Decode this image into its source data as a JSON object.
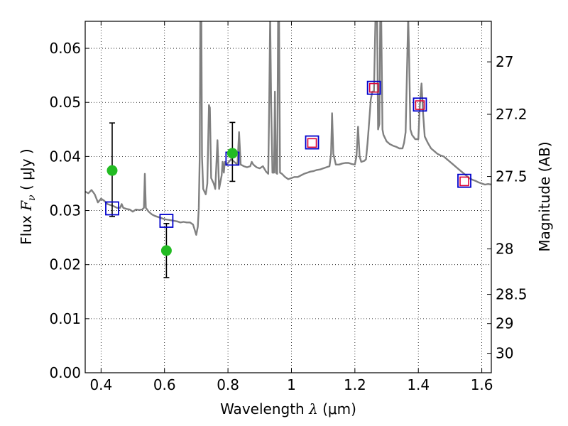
{
  "chart_data": {
    "type": "scatter",
    "xlabel": {
      "prefix": "Wavelength  ",
      "symbol": "λ",
      "unit": " (μm)"
    },
    "ylabel": {
      "prefix": "Flux  ",
      "symbol": "F",
      "subscript": "ν",
      "unit": " ( μJy )"
    },
    "y2label": "Magnitude (AB)",
    "xlim": [
      0.35,
      1.63
    ],
    "ylim": [
      0.0,
      0.065
    ],
    "grid": true,
    "x_ticks": [
      0.4,
      0.6,
      0.8,
      1.0,
      1.2,
      1.4,
      1.6
    ],
    "x_tick_labels": [
      "0.4",
      "0.6",
      "0.8",
      "1",
      "1.2",
      "1.4",
      "1.6"
    ],
    "y_ticks": [
      0.0,
      0.01,
      0.02,
      0.03,
      0.04,
      0.05,
      0.06
    ],
    "y_tick_labels": [
      "0.00",
      "0.01",
      "0.02",
      "0.03",
      "0.04",
      "0.05",
      "0.06"
    ],
    "mag_ticks": [
      {
        "label": "27",
        "flux": 0.0575
      },
      {
        "label": "27.2",
        "flux": 0.0478
      },
      {
        "label": "27.5",
        "flux": 0.0363
      },
      {
        "label": "28",
        "flux": 0.0229
      },
      {
        "label": "28.5",
        "flux": 0.0145
      },
      {
        "label": "29",
        "flux": 0.0091
      },
      {
        "label": "30",
        "flux": 0.0036
      }
    ],
    "colors": {
      "spectrum": "#808080",
      "model_marker": "#0000cc",
      "observed_hst": "#dd0033",
      "observed_ground": "#22bb22",
      "errorbar": "#000000"
    },
    "series": [
      {
        "kind": "spectrum",
        "points": [
          [
            0.35,
            0.0335
          ],
          [
            0.36,
            0.0332
          ],
          [
            0.37,
            0.0338
          ],
          [
            0.38,
            0.033
          ],
          [
            0.39,
            0.0315
          ],
          [
            0.4,
            0.0322
          ],
          [
            0.41,
            0.0318
          ],
          [
            0.42,
            0.0312
          ],
          [
            0.43,
            0.031
          ],
          [
            0.44,
            0.0308
          ],
          [
            0.45,
            0.0305
          ],
          [
            0.46,
            0.0305
          ],
          [
            0.465,
            0.0312
          ],
          [
            0.47,
            0.0305
          ],
          [
            0.48,
            0.0303
          ],
          [
            0.49,
            0.0302
          ],
          [
            0.5,
            0.0298
          ],
          [
            0.51,
            0.0302
          ],
          [
            0.52,
            0.0301
          ],
          [
            0.53,
            0.0302
          ],
          [
            0.535,
            0.0305
          ],
          [
            0.538,
            0.0368
          ],
          [
            0.541,
            0.0305
          ],
          [
            0.55,
            0.0298
          ],
          [
            0.56,
            0.0293
          ],
          [
            0.57,
            0.029
          ],
          [
            0.58,
            0.0288
          ],
          [
            0.59,
            0.0286
          ],
          [
            0.6,
            0.0284
          ],
          [
            0.61,
            0.0283
          ],
          [
            0.62,
            0.0282
          ],
          [
            0.63,
            0.0281
          ],
          [
            0.64,
            0.028
          ],
          [
            0.65,
            0.0278
          ],
          [
            0.66,
            0.0279
          ],
          [
            0.67,
            0.0278
          ],
          [
            0.68,
            0.0278
          ],
          [
            0.69,
            0.0274
          ],
          [
            0.7,
            0.0255
          ],
          [
            0.705,
            0.027
          ],
          [
            0.708,
            0.0305
          ],
          [
            0.711,
            0.04
          ],
          [
            0.713,
            0.066
          ],
          [
            0.716,
            0.066
          ],
          [
            0.718,
            0.04
          ],
          [
            0.722,
            0.034
          ],
          [
            0.73,
            0.033
          ],
          [
            0.735,
            0.035
          ],
          [
            0.74,
            0.0495
          ],
          [
            0.743,
            0.049
          ],
          [
            0.747,
            0.036
          ],
          [
            0.755,
            0.035
          ],
          [
            0.76,
            0.034
          ],
          [
            0.767,
            0.043
          ],
          [
            0.772,
            0.034
          ],
          [
            0.78,
            0.0365
          ],
          [
            0.783,
            0.039
          ],
          [
            0.787,
            0.037
          ],
          [
            0.79,
            0.039
          ],
          [
            0.795,
            0.0385
          ],
          [
            0.8,
            0.0388
          ],
          [
            0.81,
            0.0395
          ],
          [
            0.82,
            0.039
          ],
          [
            0.83,
            0.0385
          ],
          [
            0.835,
            0.0445
          ],
          [
            0.84,
            0.0385
          ],
          [
            0.85,
            0.0382
          ],
          [
            0.86,
            0.038
          ],
          [
            0.87,
            0.0382
          ],
          [
            0.875,
            0.039
          ],
          [
            0.88,
            0.0385
          ],
          [
            0.89,
            0.038
          ],
          [
            0.9,
            0.0378
          ],
          [
            0.91,
            0.0382
          ],
          [
            0.92,
            0.0372
          ],
          [
            0.927,
            0.0368
          ],
          [
            0.93,
            0.05
          ],
          [
            0.933,
            0.066
          ],
          [
            0.936,
            0.05
          ],
          [
            0.94,
            0.037
          ],
          [
            0.945,
            0.037
          ],
          [
            0.948,
            0.052
          ],
          [
            0.951,
            0.037
          ],
          [
            0.955,
            0.0368
          ],
          [
            0.958,
            0.066
          ],
          [
            0.961,
            0.066
          ],
          [
            0.964,
            0.037
          ],
          [
            0.97,
            0.0368
          ],
          [
            0.98,
            0.0362
          ],
          [
            0.99,
            0.0358
          ],
          [
            1.0,
            0.036
          ],
          [
            1.01,
            0.0362
          ],
          [
            1.02,
            0.0362
          ],
          [
            1.03,
            0.0365
          ],
          [
            1.04,
            0.0368
          ],
          [
            1.05,
            0.037
          ],
          [
            1.06,
            0.0372
          ],
          [
            1.07,
            0.0373
          ],
          [
            1.08,
            0.0375
          ],
          [
            1.09,
            0.0376
          ],
          [
            1.1,
            0.0378
          ],
          [
            1.11,
            0.038
          ],
          [
            1.12,
            0.0382
          ],
          [
            1.125,
            0.0405
          ],
          [
            1.128,
            0.048
          ],
          [
            1.132,
            0.0405
          ],
          [
            1.14,
            0.0385
          ],
          [
            1.15,
            0.0385
          ],
          [
            1.16,
            0.0387
          ],
          [
            1.17,
            0.0388
          ],
          [
            1.18,
            0.0388
          ],
          [
            1.19,
            0.0386
          ],
          [
            1.2,
            0.0385
          ],
          [
            1.205,
            0.04
          ],
          [
            1.21,
            0.0455
          ],
          [
            1.215,
            0.04
          ],
          [
            1.22,
            0.039
          ],
          [
            1.23,
            0.0392
          ],
          [
            1.235,
            0.0395
          ],
          [
            1.24,
            0.0425
          ],
          [
            1.245,
            0.0465
          ],
          [
            1.25,
            0.0505
          ],
          [
            1.255,
            0.052
          ],
          [
            1.26,
            0.052
          ],
          [
            1.265,
            0.066
          ],
          [
            1.27,
            0.066
          ],
          [
            1.273,
            0.045
          ],
          [
            1.277,
            0.046
          ],
          [
            1.28,
            0.066
          ],
          [
            1.283,
            0.066
          ],
          [
            1.287,
            0.045
          ],
          [
            1.29,
            0.044
          ],
          [
            1.3,
            0.0428
          ],
          [
            1.31,
            0.0423
          ],
          [
            1.32,
            0.042
          ],
          [
            1.33,
            0.0418
          ],
          [
            1.34,
            0.0415
          ],
          [
            1.35,
            0.0415
          ],
          [
            1.355,
            0.0425
          ],
          [
            1.36,
            0.0445
          ],
          [
            1.365,
            0.058
          ],
          [
            1.368,
            0.066
          ],
          [
            1.371,
            0.058
          ],
          [
            1.375,
            0.045
          ],
          [
            1.38,
            0.044
          ],
          [
            1.39,
            0.0432
          ],
          [
            1.4,
            0.0432
          ],
          [
            1.405,
            0.05
          ],
          [
            1.41,
            0.0535
          ],
          [
            1.415,
            0.048
          ],
          [
            1.42,
            0.0437
          ],
          [
            1.43,
            0.0425
          ],
          [
            1.44,
            0.0415
          ],
          [
            1.45,
            0.041
          ],
          [
            1.46,
            0.0405
          ],
          [
            1.47,
            0.0402
          ],
          [
            1.48,
            0.04
          ],
          [
            1.49,
            0.0395
          ],
          [
            1.5,
            0.039
          ],
          [
            1.51,
            0.0385
          ],
          [
            1.52,
            0.038
          ],
          [
            1.53,
            0.0375
          ],
          [
            1.54,
            0.037
          ],
          [
            1.55,
            0.0365
          ],
          [
            1.56,
            0.036
          ],
          [
            1.57,
            0.0357
          ],
          [
            1.58,
            0.0355
          ],
          [
            1.59,
            0.0352
          ],
          [
            1.6,
            0.035
          ],
          [
            1.61,
            0.0348
          ],
          [
            1.62,
            0.0349
          ],
          [
            1.63,
            0.0348
          ]
        ]
      },
      {
        "kind": "model_photometry",
        "points": [
          {
            "x": 0.435,
            "y": 0.0304
          },
          {
            "x": 0.606,
            "y": 0.0281
          },
          {
            "x": 0.814,
            "y": 0.0396
          },
          {
            "x": 1.065,
            "y": 0.0426
          },
          {
            "x": 1.26,
            "y": 0.0527
          },
          {
            "x": 1.405,
            "y": 0.0496
          },
          {
            "x": 1.545,
            "y": 0.0355
          }
        ]
      },
      {
        "kind": "observed_hst",
        "points": [
          {
            "x": 1.065,
            "y": 0.0425
          },
          {
            "x": 1.26,
            "y": 0.0527
          },
          {
            "x": 1.405,
            "y": 0.0495
          },
          {
            "x": 1.545,
            "y": 0.0354
          }
        ]
      },
      {
        "kind": "observed_ground",
        "points": [
          {
            "x": 0.435,
            "y": 0.0374,
            "err_lo": 0.0085,
            "err_hi": 0.0088
          },
          {
            "x": 0.606,
            "y": 0.0226,
            "err_lo": 0.005,
            "err_hi": 0.005
          },
          {
            "x": 0.814,
            "y": 0.0406,
            "err_lo": 0.0052,
            "err_hi": 0.0057
          }
        ]
      }
    ]
  }
}
